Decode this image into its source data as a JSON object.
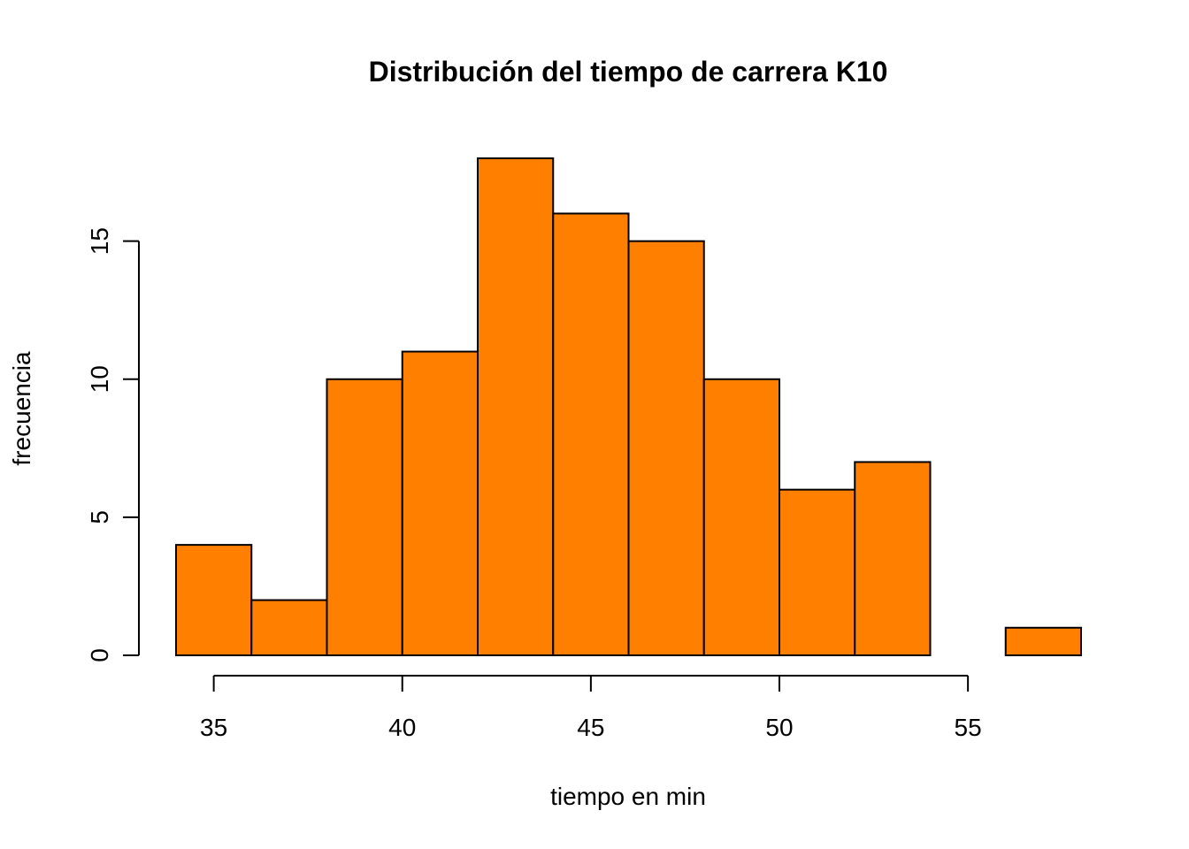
{
  "chart_data": {
    "type": "bar",
    "title": "Distribución del tiempo de carrera K10",
    "xlabel": "tiempo en min",
    "ylabel": "frecuencia",
    "bin_edges": [
      34,
      36,
      38,
      40,
      42,
      44,
      46,
      48,
      50,
      52,
      54,
      56,
      58
    ],
    "values": [
      4,
      2,
      10,
      11,
      18,
      16,
      15,
      10,
      6,
      7,
      0,
      1
    ],
    "x_ticks": [
      35,
      40,
      45,
      50,
      55
    ],
    "y_ticks": [
      0,
      5,
      10,
      15
    ],
    "xlim": [
      34,
      58
    ],
    "ylim": [
      0,
      18
    ],
    "bar_color": "#FF7F00",
    "grid": false
  }
}
